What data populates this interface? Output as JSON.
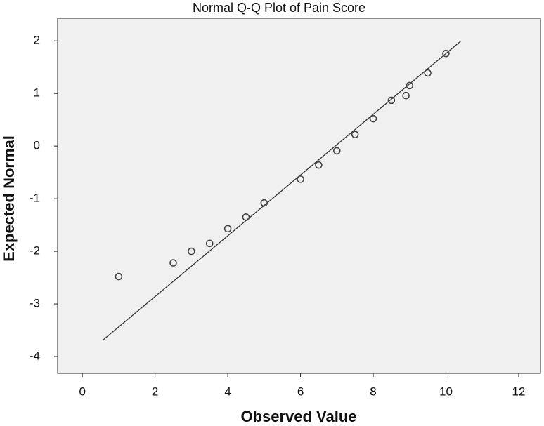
{
  "chart_data": {
    "type": "scatter",
    "title": "Normal Q-Q Plot of Pain Score",
    "x_label": "Observed Value",
    "y_label": "Expected Normal",
    "x": [
      1,
      2.5,
      3,
      3.5,
      4,
      4.5,
      5,
      6,
      6.5,
      7,
      7.5,
      8,
      8.5,
      8.9,
      9,
      9.5,
      10
    ],
    "values": [
      -2.48,
      -2.22,
      -2.0,
      -1.85,
      -1.57,
      -1.35,
      -1.08,
      -0.63,
      -0.36,
      -0.09,
      0.22,
      0.52,
      0.87,
      0.96,
      1.15,
      1.39,
      1.76
    ],
    "color": "#444444",
    "reference_line": {
      "x": [
        0.58,
        10.4
      ],
      "y": [
        -3.68,
        1.99
      ],
      "color": "#333333"
    },
    "xlim": [
      -0.68,
      12.6
    ],
    "ylim": [
      -4.32,
      2.43
    ],
    "xticks": [
      0,
      2,
      4,
      6,
      8,
      10,
      12
    ],
    "yticks": [
      2,
      1,
      0,
      -1,
      -2,
      -3,
      -4
    ],
    "grid": false
  }
}
